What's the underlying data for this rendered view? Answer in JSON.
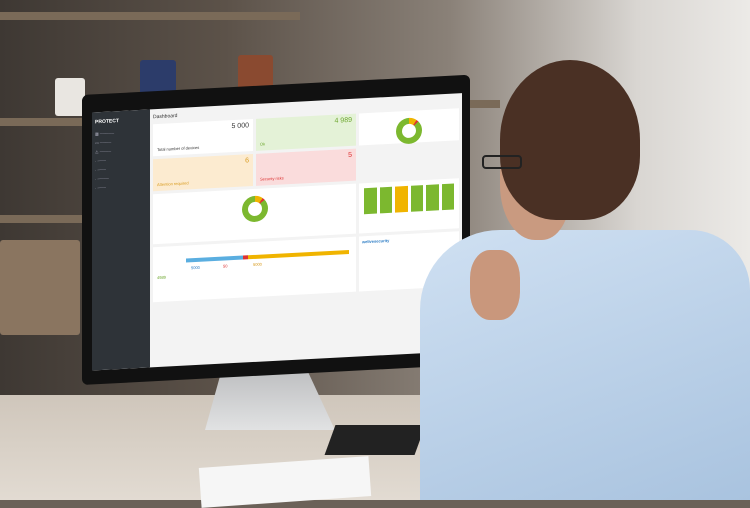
{
  "dashboard": {
    "product": "PROTECT",
    "title": "Dashboard",
    "tiles": [
      {
        "value": "5 000",
        "label": "Total number of devices"
      },
      {
        "value": "4 989",
        "label": "Ok"
      },
      {
        "value": "6",
        "label": "Attention required"
      },
      {
        "value": "5",
        "label": "Security risks"
      }
    ],
    "management": {
      "managed": "4989",
      "total": "5000",
      "risk": "50",
      "other": "5000"
    },
    "news": {
      "source": "welivesecurity"
    }
  }
}
